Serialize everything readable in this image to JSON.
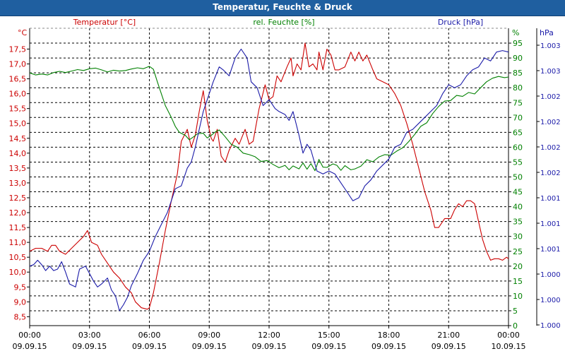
{
  "window": {
    "title": "Temperatur, Feuchte & Druck"
  },
  "chart_data": {
    "type": "line",
    "title": "Temperatur, Feuchte & Druck",
    "grid": true,
    "x_tick_labels": [
      {
        "time": "00:00",
        "date": "09.09.15"
      },
      {
        "time": "03:00",
        "date": "09.09.15"
      },
      {
        "time": "06:00",
        "date": "09.09.15"
      },
      {
        "time": "09:00",
        "date": "09.09.15"
      },
      {
        "time": "12:00",
        "date": "09.09.15"
      },
      {
        "time": "15:00",
        "date": "09.09.15"
      },
      {
        "time": "18:00",
        "date": "09.09.15"
      },
      {
        "time": "21:00",
        "date": "09.09.15"
      },
      {
        "time": "00:00",
        "date": "10.09.15"
      }
    ],
    "x_range_hours": [
      0,
      24
    ],
    "axes": {
      "temperature": {
        "label": "Temperatur [°C]",
        "unit": "°C",
        "color": "#cc0000",
        "range": [
          8.2,
          18.2
        ],
        "ticks": [
          "8,5",
          "9,0",
          "9,5",
          "10,0",
          "10,5",
          "11,0",
          "11,5",
          "12,0",
          "12,5",
          "13,0",
          "13,5",
          "14,0",
          "14,5",
          "15,0",
          "15,5",
          "16,0",
          "16,5",
          "17,0",
          "17,5"
        ]
      },
      "humidity": {
        "label": "rel. Feuchte [%]",
        "unit": "%",
        "color": "#008000",
        "range": [
          0,
          100
        ],
        "ticks": [
          "0",
          "5",
          "10",
          "15",
          "20",
          "25",
          "30",
          "35",
          "40",
          "45",
          "50",
          "55",
          "60",
          "65",
          "70",
          "75",
          "80",
          "85",
          "90",
          "95"
        ]
      },
      "pressure": {
        "label": "Druck [hPa]",
        "unit": "hPa",
        "color": "#1a1aa8",
        "ticks": [
          "1.000",
          "1.000",
          "1.000",
          "1.001",
          "1.001",
          "1.001",
          "1.002",
          "1.002",
          "1.002",
          "1.002",
          "1.003",
          "1.003"
        ]
      }
    },
    "series": [
      {
        "name": "Temperatur",
        "axis": "temperature",
        "color": "#cc0000",
        "points": [
          [
            0,
            10.7
          ],
          [
            0.3,
            10.8
          ],
          [
            0.6,
            10.8
          ],
          [
            0.9,
            10.7
          ],
          [
            1.1,
            10.9
          ],
          [
            1.3,
            10.9
          ],
          [
            1.5,
            10.7
          ],
          [
            1.8,
            10.6
          ],
          [
            2.1,
            10.8
          ],
          [
            2.4,
            11.0
          ],
          [
            2.7,
            11.2
          ],
          [
            2.9,
            11.4
          ],
          [
            3.1,
            11.0
          ],
          [
            3.4,
            10.9
          ],
          [
            3.6,
            10.6
          ],
          [
            3.9,
            10.3
          ],
          [
            4.2,
            10.0
          ],
          [
            4.5,
            9.8
          ],
          [
            4.8,
            9.5
          ],
          [
            5.1,
            9.3
          ],
          [
            5.3,
            9.0
          ],
          [
            5.6,
            8.8
          ],
          [
            5.9,
            8.75
          ],
          [
            6.0,
            8.8
          ],
          [
            6.2,
            9.3
          ],
          [
            6.5,
            10.3
          ],
          [
            6.8,
            11.4
          ],
          [
            7.1,
            12.4
          ],
          [
            7.4,
            13.3
          ],
          [
            7.6,
            14.4
          ],
          [
            7.9,
            14.8
          ],
          [
            8.1,
            14.2
          ],
          [
            8.3,
            14.6
          ],
          [
            8.5,
            15.4
          ],
          [
            8.7,
            16.1
          ],
          [
            8.9,
            15.1
          ],
          [
            9.1,
            14.5
          ],
          [
            9.2,
            14.4
          ],
          [
            9.4,
            14.8
          ],
          [
            9.6,
            13.9
          ],
          [
            9.8,
            13.7
          ],
          [
            10.0,
            14.1
          ],
          [
            10.3,
            14.5
          ],
          [
            10.5,
            14.3
          ],
          [
            10.8,
            14.8
          ],
          [
            11.0,
            14.3
          ],
          [
            11.2,
            14.4
          ],
          [
            11.5,
            15.5
          ],
          [
            11.8,
            16.3
          ],
          [
            12.0,
            15.8
          ],
          [
            12.2,
            15.9
          ],
          [
            12.4,
            16.6
          ],
          [
            12.6,
            16.4
          ],
          [
            12.9,
            16.9
          ],
          [
            13.1,
            17.2
          ],
          [
            13.2,
            16.6
          ],
          [
            13.4,
            17.0
          ],
          [
            13.6,
            16.8
          ],
          [
            13.8,
            17.7
          ],
          [
            14.0,
            16.9
          ],
          [
            14.2,
            17.0
          ],
          [
            14.4,
            16.8
          ],
          [
            14.5,
            17.4
          ],
          [
            14.7,
            16.8
          ],
          [
            14.9,
            17.5
          ],
          [
            15.1,
            17.3
          ],
          [
            15.3,
            16.8
          ],
          [
            15.5,
            16.8
          ],
          [
            15.8,
            16.9
          ],
          [
            16.1,
            17.4
          ],
          [
            16.3,
            17.1
          ],
          [
            16.5,
            17.4
          ],
          [
            16.7,
            17.1
          ],
          [
            16.9,
            17.3
          ],
          [
            17.2,
            16.8
          ],
          [
            17.4,
            16.5
          ],
          [
            17.7,
            16.4
          ],
          [
            18.0,
            16.3
          ],
          [
            18.3,
            16.0
          ],
          [
            18.6,
            15.6
          ],
          [
            18.9,
            15.0
          ],
          [
            19.2,
            14.3
          ],
          [
            19.5,
            13.5
          ],
          [
            19.8,
            12.7
          ],
          [
            20.1,
            12.1
          ],
          [
            20.3,
            11.5
          ],
          [
            20.5,
            11.5
          ],
          [
            20.8,
            11.8
          ],
          [
            21.1,
            11.8
          ],
          [
            21.3,
            12.1
          ],
          [
            21.5,
            12.3
          ],
          [
            21.7,
            12.2
          ],
          [
            21.9,
            12.4
          ],
          [
            22.1,
            12.4
          ],
          [
            22.3,
            12.3
          ],
          [
            22.5,
            11.7
          ],
          [
            22.7,
            11.1
          ],
          [
            22.9,
            10.7
          ],
          [
            23.1,
            10.4
          ],
          [
            23.3,
            10.45
          ],
          [
            23.5,
            10.45
          ],
          [
            23.7,
            10.4
          ],
          [
            23.9,
            10.5
          ],
          [
            24.0,
            10.45
          ]
        ]
      },
      {
        "name": "rel. Feuchte",
        "axis": "humidity",
        "color": "#008000",
        "points": [
          [
            0,
            85
          ],
          [
            0.3,
            84.3
          ],
          [
            0.6,
            84.6
          ],
          [
            0.9,
            84.3
          ],
          [
            1.2,
            85.1
          ],
          [
            1.5,
            85.5
          ],
          [
            1.8,
            85.1
          ],
          [
            2.1,
            85.6
          ],
          [
            2.4,
            86.1
          ],
          [
            2.7,
            85.8
          ],
          [
            3.0,
            86.4
          ],
          [
            3.3,
            86.6
          ],
          [
            3.6,
            86
          ],
          [
            3.9,
            85.3
          ],
          [
            4.2,
            85.9
          ],
          [
            4.5,
            85.6
          ],
          [
            4.8,
            85.8
          ],
          [
            5.1,
            86.3
          ],
          [
            5.4,
            86.7
          ],
          [
            5.7,
            86.4
          ],
          [
            6.0,
            87.2
          ],
          [
            6.2,
            86.2
          ],
          [
            6.4,
            82
          ],
          [
            6.6,
            78
          ],
          [
            6.8,
            74
          ],
          [
            7.1,
            70
          ],
          [
            7.3,
            67
          ],
          [
            7.5,
            65
          ],
          [
            7.8,
            64
          ],
          [
            8.0,
            62.5
          ],
          [
            8.2,
            63.4
          ],
          [
            8.4,
            64.5
          ],
          [
            8.7,
            64.7
          ],
          [
            8.9,
            63.1
          ],
          [
            9.1,
            64
          ],
          [
            9.3,
            65.1
          ],
          [
            9.5,
            65.8
          ],
          [
            9.8,
            63.5
          ],
          [
            10.1,
            61
          ],
          [
            10.4,
            60
          ],
          [
            10.7,
            58
          ],
          [
            11.0,
            57.5
          ],
          [
            11.3,
            56.8
          ],
          [
            11.6,
            55.2
          ],
          [
            11.9,
            55.5
          ],
          [
            12.2,
            54.2
          ],
          [
            12.5,
            53.1
          ],
          [
            12.8,
            53.9
          ],
          [
            13.0,
            52.4
          ],
          [
            13.2,
            53.7
          ],
          [
            13.5,
            52.7
          ],
          [
            13.7,
            54.7
          ],
          [
            13.9,
            52.6
          ],
          [
            14.1,
            54.5
          ],
          [
            14.3,
            52.1
          ],
          [
            14.5,
            55.9
          ],
          [
            14.7,
            53.3
          ],
          [
            14.9,
            53.2
          ],
          [
            15.2,
            54.4
          ],
          [
            15.4,
            53.9
          ],
          [
            15.6,
            52.2
          ],
          [
            15.8,
            53.8
          ],
          [
            16.1,
            52.4
          ],
          [
            16.3,
            52.7
          ],
          [
            16.6,
            53.6
          ],
          [
            16.9,
            55.8
          ],
          [
            17.2,
            55.1
          ],
          [
            17.5,
            56.7
          ],
          [
            17.8,
            57.5
          ],
          [
            18.1,
            57.3
          ],
          [
            18.4,
            58.7
          ],
          [
            18.7,
            59.8
          ],
          [
            19.0,
            61.9
          ],
          [
            19.3,
            64.3
          ],
          [
            19.6,
            67
          ],
          [
            19.9,
            68.2
          ],
          [
            20.2,
            71.3
          ],
          [
            20.5,
            73.7
          ],
          [
            20.8,
            75.5
          ],
          [
            21.1,
            75.7
          ],
          [
            21.4,
            77.4
          ],
          [
            21.7,
            77.1
          ],
          [
            22.0,
            78.4
          ],
          [
            22.3,
            77.9
          ],
          [
            22.6,
            80
          ],
          [
            22.9,
            82
          ],
          [
            23.2,
            83.2
          ],
          [
            23.5,
            83.8
          ],
          [
            23.8,
            83.4
          ],
          [
            24.0,
            83.6
          ]
        ]
      },
      {
        "name": "Druck",
        "axis": "pressure",
        "color": "#1a1aa8",
        "unit_note": "plotted in hPa on a relative scale (ticks shown 1.000 to 1.003)",
        "points": [
          [
            0,
            20
          ],
          [
            0.2,
            20.5
          ],
          [
            0.4,
            22
          ],
          [
            0.6,
            20.5
          ],
          [
            0.8,
            18.5
          ],
          [
            1.0,
            20
          ],
          [
            1.2,
            18.5
          ],
          [
            1.4,
            19
          ],
          [
            1.6,
            21.5
          ],
          [
            1.8,
            18
          ],
          [
            2.0,
            14
          ],
          [
            2.3,
            13
          ],
          [
            2.5,
            19
          ],
          [
            2.8,
            20
          ],
          [
            3.0,
            17.5
          ],
          [
            3.2,
            15
          ],
          [
            3.4,
            13
          ],
          [
            3.6,
            14
          ],
          [
            3.9,
            16
          ],
          [
            4.1,
            12
          ],
          [
            4.3,
            10
          ],
          [
            4.5,
            5
          ],
          [
            4.7,
            7
          ],
          [
            4.9,
            9.5
          ],
          [
            5.1,
            13.5
          ],
          [
            5.4,
            17.5
          ],
          [
            5.7,
            22
          ],
          [
            6.0,
            25
          ],
          [
            6.3,
            30
          ],
          [
            6.6,
            34
          ],
          [
            6.9,
            38
          ],
          [
            7.1,
            42
          ],
          [
            7.3,
            46
          ],
          [
            7.6,
            47
          ],
          [
            7.9,
            53
          ],
          [
            8.1,
            55
          ],
          [
            8.3,
            60
          ],
          [
            8.5,
            66
          ],
          [
            8.7,
            72
          ],
          [
            9.0,
            78
          ],
          [
            9.2,
            82
          ],
          [
            9.5,
            87
          ],
          [
            9.7,
            86
          ],
          [
            10.0,
            84
          ],
          [
            10.3,
            90
          ],
          [
            10.6,
            93
          ],
          [
            10.9,
            90
          ],
          [
            11.1,
            82
          ],
          [
            11.4,
            80
          ],
          [
            11.7,
            74
          ],
          [
            12.0,
            76
          ],
          [
            12.3,
            73
          ],
          [
            12.5,
            72
          ],
          [
            12.8,
            71
          ],
          [
            13.0,
            69
          ],
          [
            13.2,
            72
          ],
          [
            13.5,
            64
          ],
          [
            13.7,
            58
          ],
          [
            13.9,
            61
          ],
          [
            14.1,
            59
          ],
          [
            14.4,
            52
          ],
          [
            14.7,
            51
          ],
          [
            15.0,
            52
          ],
          [
            15.3,
            51
          ],
          [
            15.6,
            48
          ],
          [
            15.9,
            45
          ],
          [
            16.2,
            42
          ],
          [
            16.5,
            43
          ],
          [
            16.8,
            47
          ],
          [
            17.1,
            49
          ],
          [
            17.4,
            52
          ],
          [
            17.7,
            54
          ],
          [
            18.0,
            56
          ],
          [
            18.3,
            60
          ],
          [
            18.6,
            61
          ],
          [
            18.9,
            65
          ],
          [
            19.2,
            66
          ],
          [
            19.5,
            68
          ],
          [
            19.8,
            70
          ],
          [
            20.1,
            72
          ],
          [
            20.4,
            74
          ],
          [
            20.7,
            78
          ],
          [
            21.0,
            81
          ],
          [
            21.3,
            80
          ],
          [
            21.6,
            81
          ],
          [
            21.9,
            84
          ],
          [
            22.2,
            86
          ],
          [
            22.5,
            87
          ],
          [
            22.8,
            90
          ],
          [
            23.1,
            89
          ],
          [
            23.4,
            92
          ],
          [
            23.7,
            92.5
          ],
          [
            24.0,
            92
          ]
        ]
      }
    ]
  }
}
